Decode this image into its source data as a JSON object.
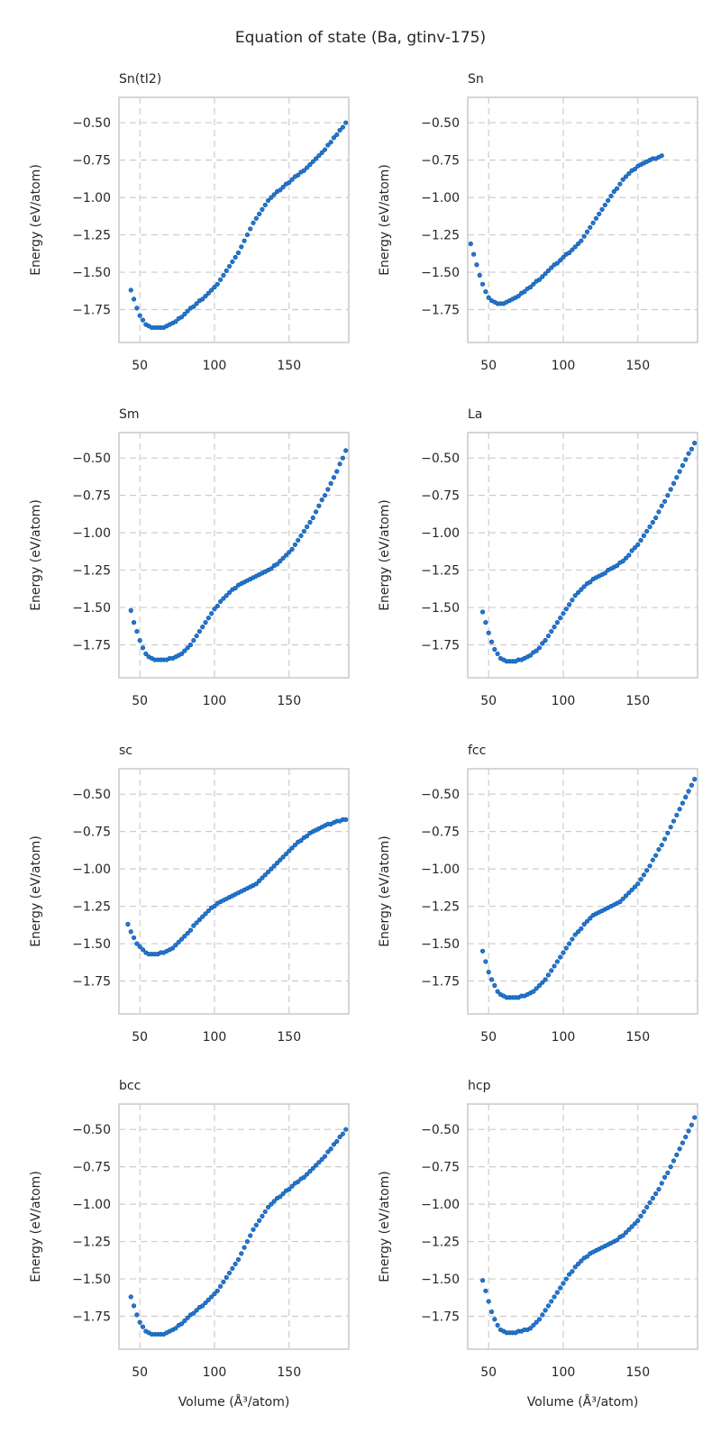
{
  "suptitle": "Equation of state (Ba, gtinv-175)",
  "colors": {
    "points": "#1f77d4",
    "point_edge": "#0d4f99",
    "grid": "#cccccc",
    "frame": "#cccccc"
  },
  "chart_data": [
    {
      "type": "scatter",
      "title": "Sn(tI2)",
      "xlabel": "",
      "ylabel": "Energy (eV/atom)",
      "xlim": [
        36,
        190
      ],
      "ylim": [
        -1.97,
        -0.33
      ],
      "grid": true,
      "xticks": [
        50,
        100,
        150
      ],
      "yticks": [
        -0.5,
        -0.75,
        -1.0,
        -1.25,
        -1.5,
        -1.75
      ],
      "x": [
        44,
        46,
        48,
        50,
        52,
        54,
        56,
        58,
        60,
        62,
        64,
        66,
        68,
        70,
        72,
        74,
        76,
        78,
        80,
        82,
        84,
        86,
        88,
        90,
        92,
        94,
        96,
        98,
        100,
        102,
        104,
        106,
        108,
        110,
        112,
        114,
        116,
        118,
        120,
        122,
        124,
        126,
        128,
        130,
        132,
        134,
        136,
        138,
        140,
        142,
        144,
        146,
        148,
        150,
        152,
        154,
        156,
        158,
        160,
        162,
        164,
        166,
        168,
        170,
        172,
        174,
        176,
        178,
        180,
        182,
        184,
        186,
        188
      ],
      "y": [
        -1.62,
        -1.68,
        -1.74,
        -1.79,
        -1.82,
        -1.85,
        -1.86,
        -1.87,
        -1.87,
        -1.87,
        -1.87,
        -1.87,
        -1.86,
        -1.85,
        -1.84,
        -1.83,
        -1.81,
        -1.8,
        -1.78,
        -1.76,
        -1.74,
        -1.73,
        -1.71,
        -1.69,
        -1.68,
        -1.66,
        -1.64,
        -1.62,
        -1.6,
        -1.58,
        -1.55,
        -1.52,
        -1.49,
        -1.46,
        -1.43,
        -1.4,
        -1.37,
        -1.33,
        -1.29,
        -1.25,
        -1.21,
        -1.17,
        -1.14,
        -1.11,
        -1.08,
        -1.05,
        -1.02,
        -1.0,
        -0.98,
        -0.96,
        -0.95,
        -0.93,
        -0.91,
        -0.9,
        -0.88,
        -0.86,
        -0.85,
        -0.83,
        -0.82,
        -0.8,
        -0.78,
        -0.76,
        -0.74,
        -0.72,
        -0.7,
        -0.68,
        -0.65,
        -0.63,
        -0.6,
        -0.58,
        -0.55,
        -0.53,
        -0.5
      ]
    },
    {
      "type": "scatter",
      "title": "Sn",
      "xlabel": "",
      "ylabel": "Energy (eV/atom)",
      "xlim": [
        36,
        190
      ],
      "ylim": [
        -1.97,
        -0.33
      ],
      "grid": true,
      "xticks": [
        50,
        100,
        150
      ],
      "yticks": [
        -0.5,
        -0.75,
        -1.0,
        -1.25,
        -1.5,
        -1.75
      ],
      "x": [
        38,
        40,
        42,
        44,
        46,
        48,
        50,
        52,
        54,
        56,
        58,
        60,
        62,
        64,
        66,
        68,
        70,
        72,
        74,
        76,
        78,
        80,
        82,
        84,
        86,
        88,
        90,
        92,
        94,
        96,
        98,
        100,
        102,
        104,
        106,
        108,
        110,
        112,
        114,
        116,
        118,
        120,
        122,
        124,
        126,
        128,
        130,
        132,
        134,
        136,
        138,
        140,
        142,
        144,
        146,
        148,
        150,
        152,
        154,
        156,
        158,
        160,
        162,
        164,
        166
      ],
      "y": [
        -1.31,
        -1.38,
        -1.45,
        -1.52,
        -1.58,
        -1.63,
        -1.67,
        -1.69,
        -1.7,
        -1.71,
        -1.71,
        -1.71,
        -1.7,
        -1.69,
        -1.68,
        -1.67,
        -1.66,
        -1.64,
        -1.63,
        -1.61,
        -1.6,
        -1.58,
        -1.56,
        -1.55,
        -1.53,
        -1.51,
        -1.49,
        -1.47,
        -1.45,
        -1.44,
        -1.42,
        -1.4,
        -1.38,
        -1.37,
        -1.35,
        -1.33,
        -1.31,
        -1.29,
        -1.26,
        -1.23,
        -1.2,
        -1.17,
        -1.14,
        -1.11,
        -1.08,
        -1.05,
        -1.02,
        -0.99,
        -0.96,
        -0.94,
        -0.91,
        -0.88,
        -0.86,
        -0.84,
        -0.82,
        -0.81,
        -0.79,
        -0.78,
        -0.77,
        -0.76,
        -0.75,
        -0.74,
        -0.74,
        -0.73,
        -0.72
      ]
    },
    {
      "type": "scatter",
      "title": "Sm",
      "xlabel": "",
      "ylabel": "Energy (eV/atom)",
      "xlim": [
        36,
        190
      ],
      "ylim": [
        -1.97,
        -0.33
      ],
      "grid": true,
      "xticks": [
        50,
        100,
        150
      ],
      "yticks": [
        -0.5,
        -0.75,
        -1.0,
        -1.25,
        -1.5,
        -1.75
      ],
      "x": [
        44,
        46,
        48,
        50,
        52,
        54,
        56,
        58,
        60,
        62,
        64,
        66,
        68,
        70,
        72,
        74,
        76,
        78,
        80,
        82,
        84,
        86,
        88,
        90,
        92,
        94,
        96,
        98,
        100,
        102,
        104,
        106,
        108,
        110,
        112,
        114,
        116,
        118,
        120,
        122,
        124,
        126,
        128,
        130,
        132,
        134,
        136,
        138,
        140,
        142,
        144,
        146,
        148,
        150,
        152,
        154,
        156,
        158,
        160,
        162,
        164,
        166,
        168,
        170,
        172,
        174,
        176,
        178,
        180,
        182,
        184,
        186,
        188
      ],
      "y": [
        -1.52,
        -1.6,
        -1.66,
        -1.72,
        -1.77,
        -1.81,
        -1.83,
        -1.84,
        -1.85,
        -1.85,
        -1.85,
        -1.85,
        -1.85,
        -1.84,
        -1.84,
        -1.83,
        -1.82,
        -1.81,
        -1.79,
        -1.77,
        -1.75,
        -1.72,
        -1.69,
        -1.66,
        -1.63,
        -1.6,
        -1.57,
        -1.54,
        -1.51,
        -1.49,
        -1.46,
        -1.44,
        -1.42,
        -1.4,
        -1.38,
        -1.37,
        -1.35,
        -1.34,
        -1.33,
        -1.32,
        -1.31,
        -1.3,
        -1.29,
        -1.28,
        -1.27,
        -1.26,
        -1.25,
        -1.24,
        -1.22,
        -1.21,
        -1.19,
        -1.17,
        -1.15,
        -1.13,
        -1.11,
        -1.08,
        -1.05,
        -1.02,
        -0.99,
        -0.96,
        -0.93,
        -0.9,
        -0.86,
        -0.82,
        -0.78,
        -0.75,
        -0.71,
        -0.67,
        -0.63,
        -0.59,
        -0.54,
        -0.5,
        -0.45
      ]
    },
    {
      "type": "scatter",
      "title": "La",
      "xlabel": "",
      "ylabel": "Energy (eV/atom)",
      "xlim": [
        36,
        190
      ],
      "ylim": [
        -1.97,
        -0.33
      ],
      "grid": true,
      "xticks": [
        50,
        100,
        150
      ],
      "yticks": [
        -0.5,
        -0.75,
        -1.0,
        -1.25,
        -1.5,
        -1.75
      ],
      "x": [
        46,
        48,
        50,
        52,
        54,
        56,
        58,
        60,
        62,
        64,
        66,
        68,
        70,
        72,
        74,
        76,
        78,
        80,
        82,
        84,
        86,
        88,
        90,
        92,
        94,
        96,
        98,
        100,
        102,
        104,
        106,
        108,
        110,
        112,
        114,
        116,
        118,
        120,
        122,
        124,
        126,
        128,
        130,
        132,
        134,
        136,
        138,
        140,
        142,
        144,
        146,
        148,
        150,
        152,
        154,
        156,
        158,
        160,
        162,
        164,
        166,
        168,
        170,
        172,
        174,
        176,
        178,
        180,
        182,
        184,
        186,
        188
      ],
      "y": [
        -1.53,
        -1.6,
        -1.67,
        -1.73,
        -1.78,
        -1.81,
        -1.84,
        -1.85,
        -1.86,
        -1.86,
        -1.86,
        -1.86,
        -1.85,
        -1.85,
        -1.84,
        -1.83,
        -1.82,
        -1.8,
        -1.79,
        -1.77,
        -1.74,
        -1.72,
        -1.69,
        -1.66,
        -1.63,
        -1.6,
        -1.57,
        -1.54,
        -1.51,
        -1.48,
        -1.45,
        -1.42,
        -1.4,
        -1.38,
        -1.36,
        -1.34,
        -1.33,
        -1.31,
        -1.3,
        -1.29,
        -1.28,
        -1.27,
        -1.25,
        -1.24,
        -1.23,
        -1.22,
        -1.2,
        -1.19,
        -1.17,
        -1.15,
        -1.12,
        -1.1,
        -1.08,
        -1.05,
        -1.02,
        -0.99,
        -0.96,
        -0.93,
        -0.9,
        -0.86,
        -0.82,
        -0.79,
        -0.75,
        -0.71,
        -0.67,
        -0.63,
        -0.59,
        -0.55,
        -0.51,
        -0.47,
        -0.44,
        -0.4
      ]
    },
    {
      "type": "scatter",
      "title": "sc",
      "xlabel": "",
      "ylabel": "Energy (eV/atom)",
      "xlim": [
        36,
        190
      ],
      "ylim": [
        -1.97,
        -0.33
      ],
      "grid": true,
      "xticks": [
        50,
        100,
        150
      ],
      "yticks": [
        -0.5,
        -0.75,
        -1.0,
        -1.25,
        -1.5,
        -1.75
      ],
      "x": [
        42,
        44,
        46,
        48,
        50,
        52,
        54,
        56,
        58,
        60,
        62,
        64,
        66,
        68,
        70,
        72,
        74,
        76,
        78,
        80,
        82,
        84,
        86,
        88,
        90,
        92,
        94,
        96,
        98,
        100,
        102,
        104,
        106,
        108,
        110,
        112,
        114,
        116,
        118,
        120,
        122,
        124,
        126,
        128,
        130,
        132,
        134,
        136,
        138,
        140,
        142,
        144,
        146,
        148,
        150,
        152,
        154,
        156,
        158,
        160,
        162,
        164,
        166,
        168,
        170,
        172,
        174,
        176,
        178,
        180,
        182,
        184,
        186,
        188
      ],
      "y": [
        -1.37,
        -1.42,
        -1.46,
        -1.5,
        -1.52,
        -1.54,
        -1.56,
        -1.57,
        -1.57,
        -1.57,
        -1.57,
        -1.56,
        -1.56,
        -1.55,
        -1.54,
        -1.53,
        -1.51,
        -1.49,
        -1.47,
        -1.45,
        -1.43,
        -1.41,
        -1.38,
        -1.36,
        -1.34,
        -1.32,
        -1.3,
        -1.28,
        -1.26,
        -1.25,
        -1.23,
        -1.22,
        -1.21,
        -1.2,
        -1.19,
        -1.18,
        -1.17,
        -1.16,
        -1.15,
        -1.14,
        -1.13,
        -1.12,
        -1.11,
        -1.1,
        -1.08,
        -1.06,
        -1.04,
        -1.02,
        -1.0,
        -0.98,
        -0.96,
        -0.94,
        -0.92,
        -0.9,
        -0.88,
        -0.86,
        -0.84,
        -0.82,
        -0.81,
        -0.79,
        -0.78,
        -0.76,
        -0.75,
        -0.74,
        -0.73,
        -0.72,
        -0.71,
        -0.7,
        -0.7,
        -0.69,
        -0.68,
        -0.68,
        -0.67,
        -0.67
      ]
    },
    {
      "type": "scatter",
      "title": "fcc",
      "xlabel": "",
      "ylabel": "Energy (eV/atom)",
      "xlim": [
        36,
        190
      ],
      "ylim": [
        -1.97,
        -0.33
      ],
      "grid": true,
      "xticks": [
        50,
        100,
        150
      ],
      "yticks": [
        -0.5,
        -0.75,
        -1.0,
        -1.25,
        -1.5,
        -1.75
      ],
      "x": [
        46,
        48,
        50,
        52,
        54,
        56,
        58,
        60,
        62,
        64,
        66,
        68,
        70,
        72,
        74,
        76,
        78,
        80,
        82,
        84,
        86,
        88,
        90,
        92,
        94,
        96,
        98,
        100,
        102,
        104,
        106,
        108,
        110,
        112,
        114,
        116,
        118,
        120,
        122,
        124,
        126,
        128,
        130,
        132,
        134,
        136,
        138,
        140,
        142,
        144,
        146,
        148,
        150,
        152,
        154,
        156,
        158,
        160,
        162,
        164,
        166,
        168,
        170,
        172,
        174,
        176,
        178,
        180,
        182,
        184,
        186,
        188
      ],
      "y": [
        -1.55,
        -1.62,
        -1.69,
        -1.74,
        -1.78,
        -1.82,
        -1.84,
        -1.85,
        -1.86,
        -1.86,
        -1.86,
        -1.86,
        -1.86,
        -1.85,
        -1.85,
        -1.84,
        -1.83,
        -1.82,
        -1.8,
        -1.78,
        -1.76,
        -1.74,
        -1.71,
        -1.68,
        -1.65,
        -1.62,
        -1.59,
        -1.56,
        -1.53,
        -1.5,
        -1.47,
        -1.44,
        -1.42,
        -1.4,
        -1.37,
        -1.35,
        -1.33,
        -1.31,
        -1.3,
        -1.29,
        -1.28,
        -1.27,
        -1.26,
        -1.25,
        -1.24,
        -1.23,
        -1.22,
        -1.2,
        -1.18,
        -1.16,
        -1.14,
        -1.12,
        -1.1,
        -1.07,
        -1.04,
        -1.01,
        -0.98,
        -0.94,
        -0.91,
        -0.87,
        -0.84,
        -0.8,
        -0.76,
        -0.72,
        -0.68,
        -0.64,
        -0.6,
        -0.56,
        -0.52,
        -0.48,
        -0.44,
        -0.4
      ]
    },
    {
      "type": "scatter",
      "title": "bcc",
      "xlabel": "Volume (Å³/atom)",
      "ylabel": "Energy (eV/atom)",
      "xlim": [
        36,
        190
      ],
      "ylim": [
        -1.97,
        -0.33
      ],
      "grid": true,
      "xticks": [
        50,
        100,
        150
      ],
      "yticks": [
        -0.5,
        -0.75,
        -1.0,
        -1.25,
        -1.5,
        -1.75
      ],
      "x": [
        44,
        46,
        48,
        50,
        52,
        54,
        56,
        58,
        60,
        62,
        64,
        66,
        68,
        70,
        72,
        74,
        76,
        78,
        80,
        82,
        84,
        86,
        88,
        90,
        92,
        94,
        96,
        98,
        100,
        102,
        104,
        106,
        108,
        110,
        112,
        114,
        116,
        118,
        120,
        122,
        124,
        126,
        128,
        130,
        132,
        134,
        136,
        138,
        140,
        142,
        144,
        146,
        148,
        150,
        152,
        154,
        156,
        158,
        160,
        162,
        164,
        166,
        168,
        170,
        172,
        174,
        176,
        178,
        180,
        182,
        184,
        186,
        188
      ],
      "y": [
        -1.62,
        -1.68,
        -1.74,
        -1.79,
        -1.82,
        -1.85,
        -1.86,
        -1.87,
        -1.87,
        -1.87,
        -1.87,
        -1.87,
        -1.86,
        -1.85,
        -1.84,
        -1.83,
        -1.81,
        -1.8,
        -1.78,
        -1.76,
        -1.74,
        -1.73,
        -1.71,
        -1.69,
        -1.68,
        -1.66,
        -1.64,
        -1.62,
        -1.6,
        -1.58,
        -1.55,
        -1.52,
        -1.49,
        -1.46,
        -1.43,
        -1.4,
        -1.37,
        -1.33,
        -1.29,
        -1.25,
        -1.21,
        -1.17,
        -1.14,
        -1.11,
        -1.08,
        -1.05,
        -1.02,
        -1.0,
        -0.98,
        -0.96,
        -0.95,
        -0.93,
        -0.91,
        -0.9,
        -0.88,
        -0.86,
        -0.85,
        -0.83,
        -0.82,
        -0.8,
        -0.78,
        -0.76,
        -0.74,
        -0.72,
        -0.7,
        -0.68,
        -0.65,
        -0.63,
        -0.6,
        -0.58,
        -0.55,
        -0.53,
        -0.5
      ]
    },
    {
      "type": "scatter",
      "title": "hcp",
      "xlabel": "Volume (Å³/atom)",
      "ylabel": "Energy (eV/atom)",
      "xlim": [
        36,
        190
      ],
      "ylim": [
        -1.97,
        -0.33
      ],
      "grid": true,
      "xticks": [
        50,
        100,
        150
      ],
      "yticks": [
        -0.5,
        -0.75,
        -1.0,
        -1.25,
        -1.5,
        -1.75
      ],
      "x": [
        46,
        48,
        50,
        52,
        54,
        56,
        58,
        60,
        62,
        64,
        66,
        68,
        70,
        72,
        74,
        76,
        78,
        80,
        82,
        84,
        86,
        88,
        90,
        92,
        94,
        96,
        98,
        100,
        102,
        104,
        106,
        108,
        110,
        112,
        114,
        116,
        118,
        120,
        122,
        124,
        126,
        128,
        130,
        132,
        134,
        136,
        138,
        140,
        142,
        144,
        146,
        148,
        150,
        152,
        154,
        156,
        158,
        160,
        162,
        164,
        166,
        168,
        170,
        172,
        174,
        176,
        178,
        180,
        182,
        184,
        186,
        188
      ],
      "y": [
        -1.51,
        -1.58,
        -1.65,
        -1.72,
        -1.77,
        -1.81,
        -1.84,
        -1.85,
        -1.86,
        -1.86,
        -1.86,
        -1.86,
        -1.85,
        -1.85,
        -1.84,
        -1.84,
        -1.83,
        -1.81,
        -1.79,
        -1.77,
        -1.74,
        -1.71,
        -1.68,
        -1.65,
        -1.62,
        -1.59,
        -1.56,
        -1.53,
        -1.5,
        -1.47,
        -1.45,
        -1.42,
        -1.4,
        -1.38,
        -1.36,
        -1.35,
        -1.33,
        -1.32,
        -1.31,
        -1.3,
        -1.29,
        -1.28,
        -1.27,
        -1.26,
        -1.25,
        -1.24,
        -1.22,
        -1.21,
        -1.19,
        -1.17,
        -1.15,
        -1.13,
        -1.11,
        -1.08,
        -1.05,
        -1.02,
        -0.99,
        -0.96,
        -0.93,
        -0.9,
        -0.86,
        -0.82,
        -0.79,
        -0.75,
        -0.71,
        -0.67,
        -0.63,
        -0.59,
        -0.55,
        -0.51,
        -0.47,
        -0.42
      ]
    }
  ]
}
